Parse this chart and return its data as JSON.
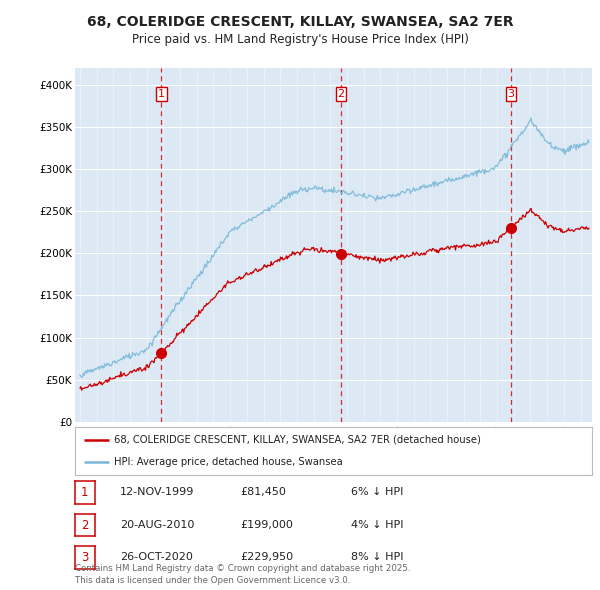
{
  "title": "68, COLERIDGE CRESCENT, KILLAY, SWANSEA, SA2 7ER",
  "subtitle": "Price paid vs. HM Land Registry's House Price Index (HPI)",
  "ylim": [
    0,
    420000
  ],
  "yticks": [
    0,
    50000,
    100000,
    150000,
    200000,
    250000,
    300000,
    350000,
    400000
  ],
  "ytick_labels": [
    "£0",
    "£50K",
    "£100K",
    "£150K",
    "£200K",
    "£250K",
    "£300K",
    "£350K",
    "£400K"
  ],
  "t_sale1": 1999.876,
  "t_sale2": 2010.635,
  "t_sale3": 2020.826,
  "sale_prices": [
    81450,
    199000,
    229950
  ],
  "sale_info": [
    {
      "num": "1",
      "date": "12-NOV-1999",
      "price": "£81,450",
      "pct": "6% ↓ HPI"
    },
    {
      "num": "2",
      "date": "20-AUG-2010",
      "price": "£199,000",
      "pct": "4% ↓ HPI"
    },
    {
      "num": "3",
      "date": "26-OCT-2020",
      "price": "£229,950",
      "pct": "8% ↓ HPI"
    }
  ],
  "hpi_color": "#7ab8d8",
  "price_color": "#cc0000",
  "dashed_color": "#cc0000",
  "bg_color": "#dce9f5",
  "grid_color": "#c0d0e8",
  "legend_label_price": "68, COLERIDGE CRESCENT, KILLAY, SWANSEA, SA2 7ER (detached house)",
  "legend_label_hpi": "HPI: Average price, detached house, Swansea",
  "footnote": "Contains HM Land Registry data © Crown copyright and database right 2025.\nThis data is licensed under the Open Government Licence v3.0.",
  "xstart": 1995,
  "xend": 2025,
  "n_points": 600
}
